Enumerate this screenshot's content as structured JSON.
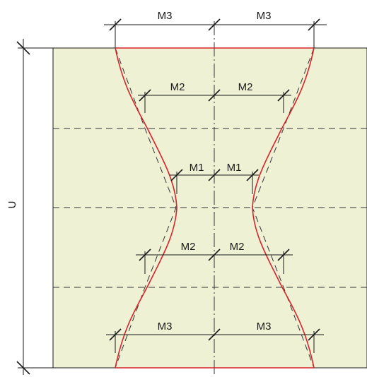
{
  "labels": {
    "m1": "M1",
    "m2": "M2",
    "m3": "M3",
    "u": "U"
  },
  "colors": {
    "panel_fill": "#eef1d4",
    "profile_red": "#d9232a",
    "line_dark": "#1a1a1a"
  }
}
